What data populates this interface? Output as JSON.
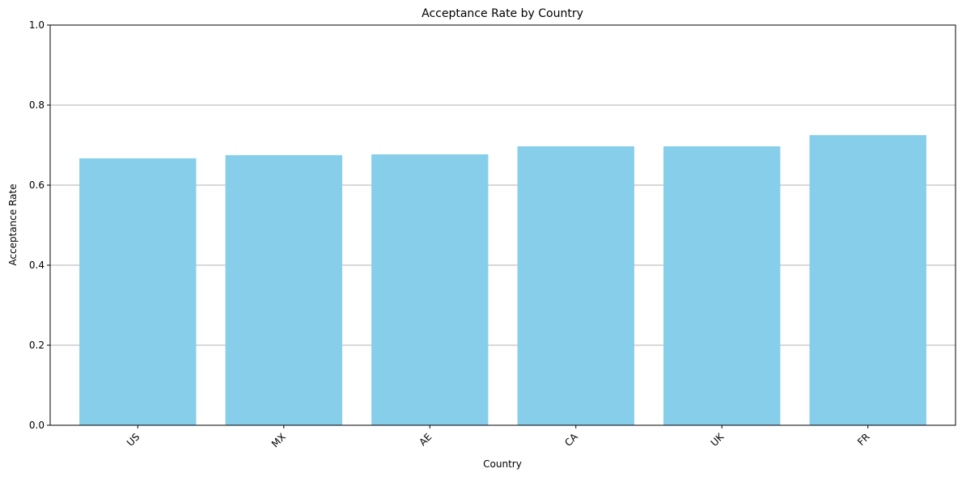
{
  "chart_data": {
    "type": "bar",
    "title": "Acceptance Rate by Country",
    "xlabel": "Country",
    "ylabel": "Acceptance Rate",
    "categories": [
      "US",
      "MX",
      "AE",
      "CA",
      "UK",
      "FR"
    ],
    "values": [
      0.667,
      0.675,
      0.677,
      0.697,
      0.697,
      0.725
    ],
    "ylim": [
      0,
      1
    ],
    "yticks": [
      "0.0",
      "0.2",
      "0.4",
      "0.6",
      "0.8",
      "1.0"
    ],
    "grid": "y-axis major",
    "bar_color": "#87CEEB",
    "grid_color": "#b0b0b0"
  }
}
